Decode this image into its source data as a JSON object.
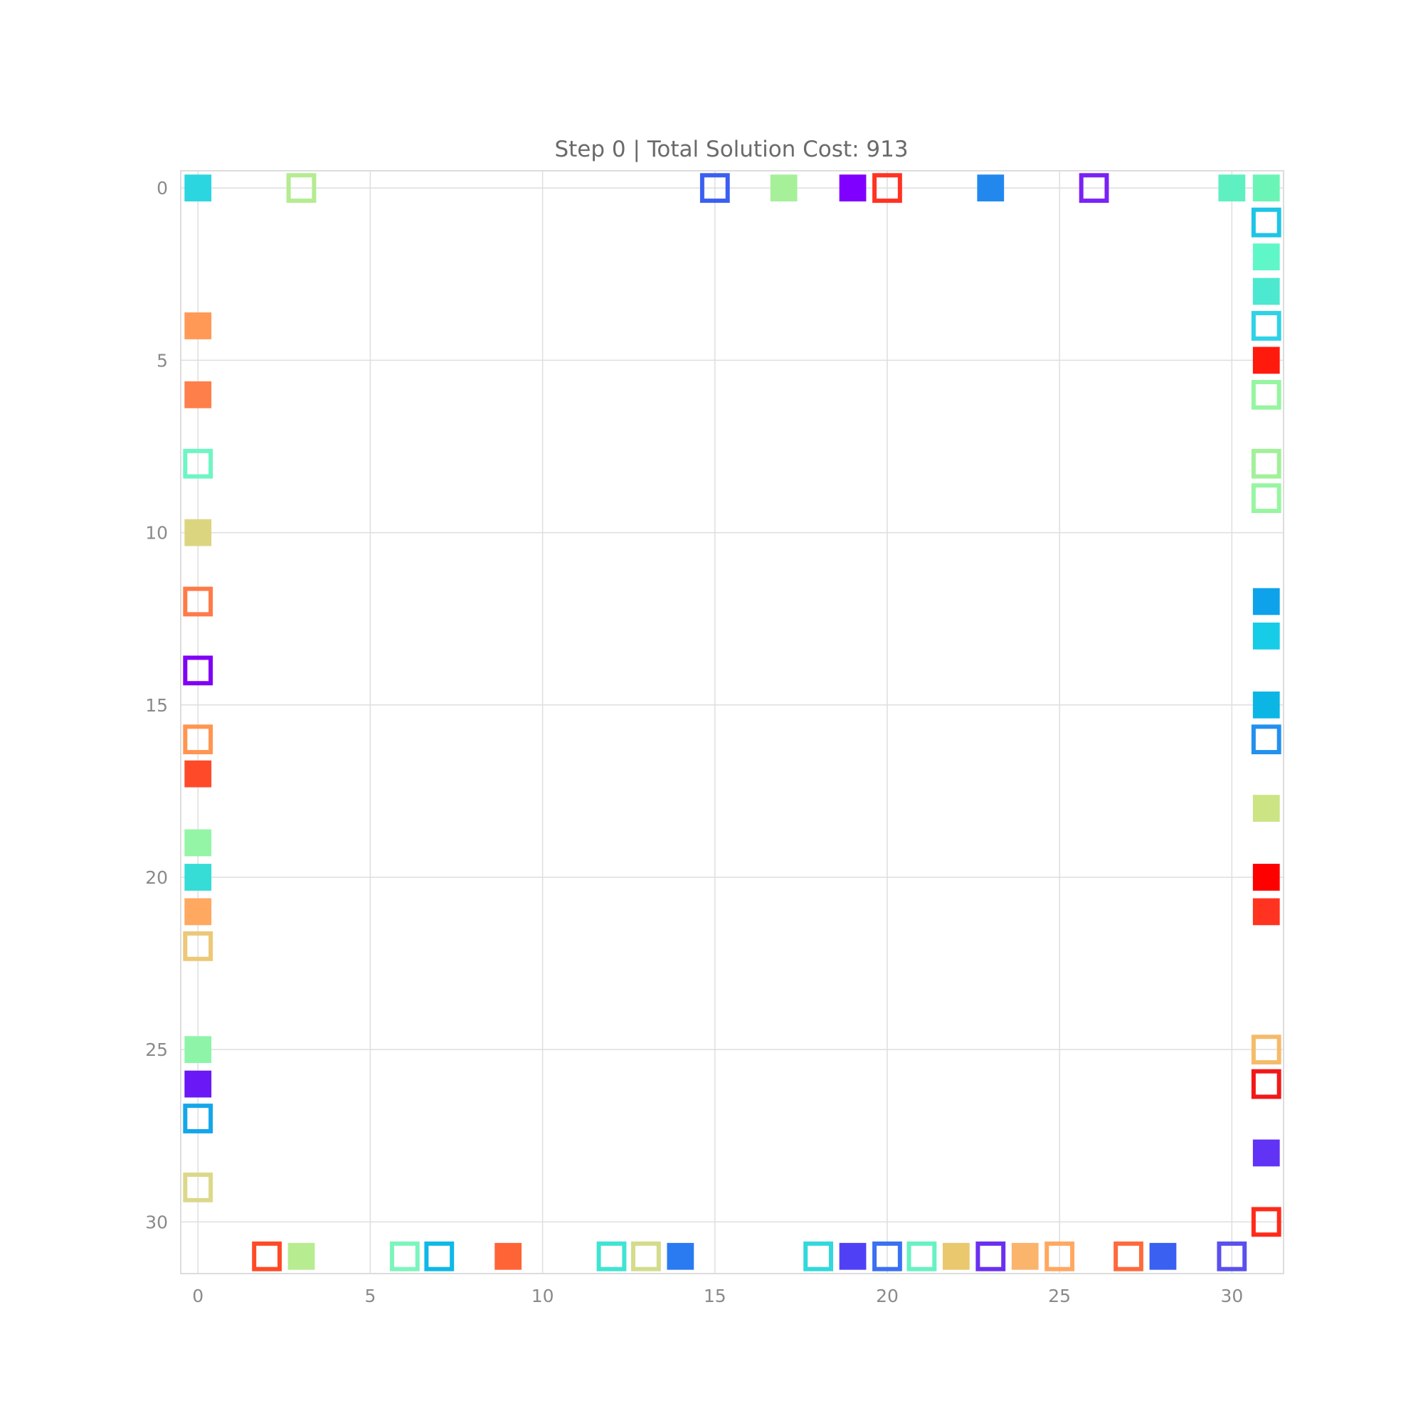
{
  "chart_data": {
    "type": "scatter",
    "title": "Step 0 | Total Solution Cost: 913",
    "xlabel": "",
    "ylabel": "",
    "xlim": [
      -0.5,
      31.5
    ],
    "ylim": [
      31.5,
      -0.5
    ],
    "y_inverted": true,
    "grid": true,
    "xticks": [
      0,
      5,
      10,
      15,
      20,
      25,
      30
    ],
    "yticks": [
      0,
      5,
      10,
      15,
      20,
      25,
      30
    ],
    "points": [
      {
        "x": 0,
        "y": 0,
        "filled": true,
        "color": "#2bd6e0"
      },
      {
        "x": 3,
        "y": 0,
        "filled": false,
        "color": "#b4ec90"
      },
      {
        "x": 15,
        "y": 0,
        "filled": false,
        "color": "#3b5ff0"
      },
      {
        "x": 17,
        "y": 0,
        "filled": true,
        "color": "#a6f09a"
      },
      {
        "x": 19,
        "y": 0,
        "filled": true,
        "color": "#8000ff"
      },
      {
        "x": 20,
        "y": 0,
        "filled": false,
        "color": "#ff3322"
      },
      {
        "x": 23,
        "y": 0,
        "filled": true,
        "color": "#2288ee"
      },
      {
        "x": 26,
        "y": 0,
        "filled": false,
        "color": "#7a22f5"
      },
      {
        "x": 30,
        "y": 0,
        "filled": true,
        "color": "#5ef0c0"
      },
      {
        "x": 31,
        "y": 0,
        "filled": true,
        "color": "#6af5b6"
      },
      {
        "x": 31,
        "y": 1,
        "filled": false,
        "color": "#1ec4e6"
      },
      {
        "x": 31,
        "y": 2,
        "filled": true,
        "color": "#60f7c8"
      },
      {
        "x": 31,
        "y": 3,
        "filled": true,
        "color": "#4ce8d0"
      },
      {
        "x": 31,
        "y": 4,
        "filled": false,
        "color": "#2fd2e6"
      },
      {
        "x": 31,
        "y": 5,
        "filled": true,
        "color": "#ff1a0d"
      },
      {
        "x": 31,
        "y": 6,
        "filled": false,
        "color": "#96f5a0"
      },
      {
        "x": 31,
        "y": 8,
        "filled": false,
        "color": "#a2f09a"
      },
      {
        "x": 31,
        "y": 9,
        "filled": false,
        "color": "#98f5a2"
      },
      {
        "x": 31,
        "y": 12,
        "filled": true,
        "color": "#0ea2ea"
      },
      {
        "x": 31,
        "y": 13,
        "filled": true,
        "color": "#16cce6"
      },
      {
        "x": 31,
        "y": 15,
        "filled": true,
        "color": "#0cb6e4"
      },
      {
        "x": 31,
        "y": 16,
        "filled": false,
        "color": "#2290ee"
      },
      {
        "x": 31,
        "y": 18,
        "filled": true,
        "color": "#cce484"
      },
      {
        "x": 31,
        "y": 20,
        "filled": true,
        "color": "#ff0000"
      },
      {
        "x": 31,
        "y": 21,
        "filled": true,
        "color": "#ff3320"
      },
      {
        "x": 31,
        "y": 25,
        "filled": false,
        "color": "#f5bb6a"
      },
      {
        "x": 31,
        "y": 26,
        "filled": false,
        "color": "#f21818"
      },
      {
        "x": 31,
        "y": 28,
        "filled": true,
        "color": "#6033f5"
      },
      {
        "x": 31,
        "y": 30,
        "filled": false,
        "color": "#ff2a1a"
      },
      {
        "x": 0,
        "y": 4,
        "filled": true,
        "color": "#ff9955"
      },
      {
        "x": 0,
        "y": 6,
        "filled": true,
        "color": "#ff7f4a"
      },
      {
        "x": 0,
        "y": 8,
        "filled": false,
        "color": "#6ef5c4"
      },
      {
        "x": 0,
        "y": 10,
        "filled": true,
        "color": "#dcd580"
      },
      {
        "x": 0,
        "y": 12,
        "filled": false,
        "color": "#ff7a48"
      },
      {
        "x": 0,
        "y": 14,
        "filled": false,
        "color": "#8000f5"
      },
      {
        "x": 0,
        "y": 16,
        "filled": false,
        "color": "#ff9550"
      },
      {
        "x": 0,
        "y": 17,
        "filled": true,
        "color": "#ff4a2a"
      },
      {
        "x": 0,
        "y": 19,
        "filled": true,
        "color": "#94f5a6"
      },
      {
        "x": 0,
        "y": 20,
        "filled": true,
        "color": "#36dcd6"
      },
      {
        "x": 0,
        "y": 21,
        "filled": true,
        "color": "#ffa860"
      },
      {
        "x": 0,
        "y": 22,
        "filled": false,
        "color": "#ecc878"
      },
      {
        "x": 0,
        "y": 25,
        "filled": true,
        "color": "#8ef5a8"
      },
      {
        "x": 0,
        "y": 26,
        "filled": true,
        "color": "#6a18f5"
      },
      {
        "x": 0,
        "y": 27,
        "filled": false,
        "color": "#14a6ea"
      },
      {
        "x": 0,
        "y": 29,
        "filled": false,
        "color": "#dcd88a"
      },
      {
        "x": 2,
        "y": 31,
        "filled": false,
        "color": "#ff4a26"
      },
      {
        "x": 3,
        "y": 31,
        "filled": true,
        "color": "#b8ec90"
      },
      {
        "x": 6,
        "y": 31,
        "filled": false,
        "color": "#7cf5bc"
      },
      {
        "x": 7,
        "y": 31,
        "filled": false,
        "color": "#10b8e8"
      },
      {
        "x": 9,
        "y": 31,
        "filled": true,
        "color": "#ff6436"
      },
      {
        "x": 12,
        "y": 31,
        "filled": false,
        "color": "#40e4d2"
      },
      {
        "x": 13,
        "y": 31,
        "filled": false,
        "color": "#d4dc8c"
      },
      {
        "x": 14,
        "y": 31,
        "filled": true,
        "color": "#2a7af2"
      },
      {
        "x": 18,
        "y": 31,
        "filled": false,
        "color": "#32d8dc"
      },
      {
        "x": 19,
        "y": 31,
        "filled": true,
        "color": "#5040f5"
      },
      {
        "x": 20,
        "y": 31,
        "filled": false,
        "color": "#3a70f2"
      },
      {
        "x": 21,
        "y": 31,
        "filled": false,
        "color": "#66f2c2"
      },
      {
        "x": 22,
        "y": 31,
        "filled": true,
        "color": "#eac86e"
      },
      {
        "x": 23,
        "y": 31,
        "filled": false,
        "color": "#6a30f0"
      },
      {
        "x": 24,
        "y": 31,
        "filled": true,
        "color": "#fab46c"
      },
      {
        "x": 25,
        "y": 31,
        "filled": false,
        "color": "#ffa860"
      },
      {
        "x": 27,
        "y": 31,
        "filled": false,
        "color": "#ff6a3c"
      },
      {
        "x": 28,
        "y": 31,
        "filled": true,
        "color": "#3a60f2"
      },
      {
        "x": 30,
        "y": 31,
        "filled": false,
        "color": "#5a50ee"
      }
    ]
  }
}
